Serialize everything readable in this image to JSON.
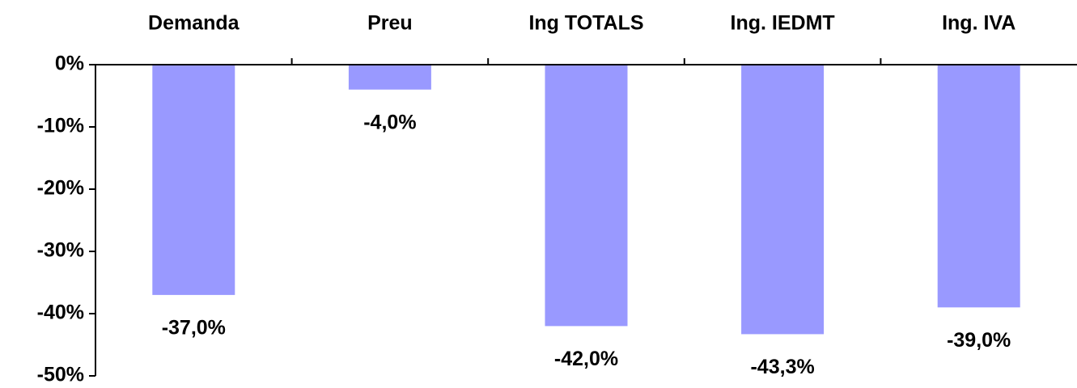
{
  "chart_data": {
    "type": "bar",
    "categories": [
      "Demanda",
      "Preu",
      "Ing TOTALS",
      "Ing. IEDMT",
      "Ing. IVA"
    ],
    "values": [
      -37.0,
      -4.0,
      -42.0,
      -43.3,
      -39.0
    ],
    "value_labels": [
      "-37,0%",
      "-4,0%",
      "-42,0%",
      "-43,3%",
      "-39,0%"
    ],
    "color": "#9999ff",
    "ylim": [
      -50,
      0
    ],
    "yticks": [
      {
        "value": 0,
        "label": "0%"
      },
      {
        "value": -10,
        "label": "-10%"
      },
      {
        "value": -20,
        "label": "-20%"
      },
      {
        "value": -30,
        "label": "-30%"
      },
      {
        "value": -40,
        "label": "-40%"
      },
      {
        "value": -50,
        "label": "-50%"
      }
    ]
  }
}
